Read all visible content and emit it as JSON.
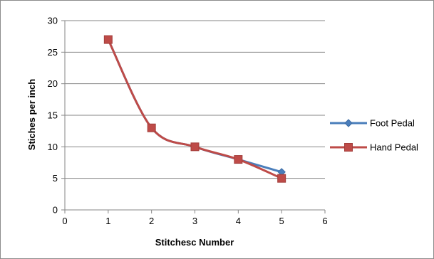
{
  "chart_data": {
    "type": "line",
    "title": "",
    "xlabel": "Stitchesc Number",
    "ylabel": "Stiches per inch",
    "xlim": [
      0,
      6
    ],
    "ylim": [
      0,
      30
    ],
    "xticks": [
      0,
      1,
      2,
      3,
      4,
      5,
      6
    ],
    "yticks": [
      0,
      5,
      10,
      15,
      20,
      25,
      30
    ],
    "grid": "horizontal",
    "legend_position": "right",
    "smooth": true,
    "series": [
      {
        "name": "Foot Pedal",
        "color": "#4A7EBB",
        "marker": "diamond",
        "x": [
          1,
          2,
          3,
          4,
          5
        ],
        "y": [
          27,
          13,
          10,
          8,
          6
        ]
      },
      {
        "name": "Hand Pedal",
        "color": "#BE4B48",
        "marker": "square",
        "x": [
          1,
          2,
          3,
          4,
          5
        ],
        "y": [
          27,
          13,
          10,
          8,
          5
        ]
      }
    ]
  }
}
